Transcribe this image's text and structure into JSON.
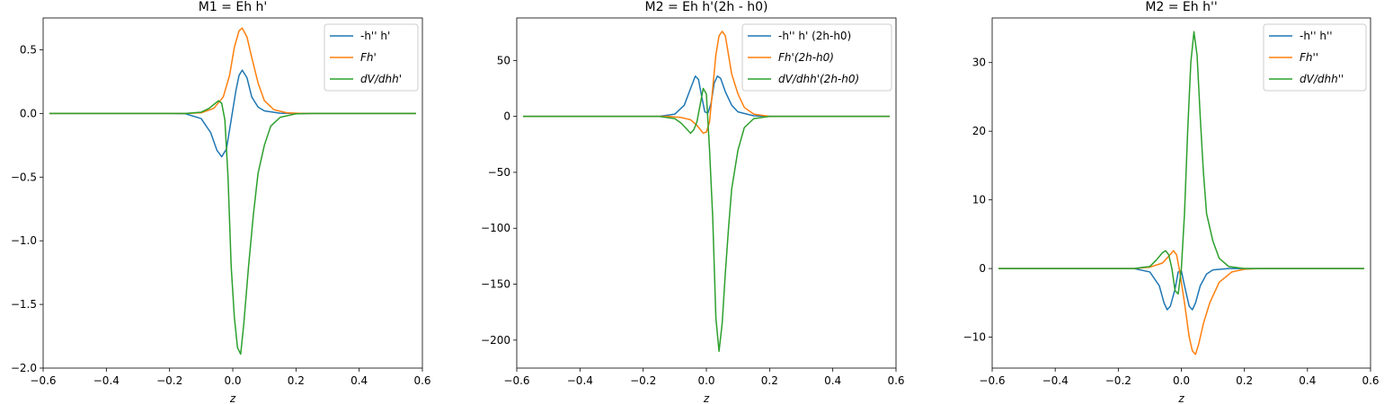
{
  "chart_data": [
    {
      "type": "line",
      "title": "M1 = Eh h'",
      "xlabel": "z",
      "xlim": [
        -0.6,
        0.6
      ],
      "ylim": [
        -2.0,
        0.75
      ],
      "xticks": [
        "−0.6",
        "−0.4",
        "−0.2",
        "0.0",
        "0.2",
        "0.4",
        "0.6"
      ],
      "yticks": [
        "−2.0",
        "−1.5",
        "−1.0",
        "−0.5",
        "0.0",
        "0.5"
      ],
      "ytick_values": [
        -2.0,
        -1.5,
        -1.0,
        -0.5,
        0.0,
        0.5
      ],
      "xtick_values": [
        -0.6,
        -0.4,
        -0.2,
        0.0,
        0.2,
        0.4,
        0.6
      ],
      "legend_position": "top-right",
      "series": [
        {
          "name": "-h'' h'",
          "color": "#1f77b4",
          "points": [
            [
              -0.58,
              0
            ],
            [
              -0.2,
              0
            ],
            [
              -0.15,
              -0.002
            ],
            [
              -0.1,
              -0.04
            ],
            [
              -0.07,
              -0.15
            ],
            [
              -0.05,
              -0.29
            ],
            [
              -0.035,
              -0.34
            ],
            [
              -0.02,
              -0.28
            ],
            [
              -0.005,
              -0.05
            ],
            [
              0.01,
              0.18
            ],
            [
              0.02,
              0.3
            ],
            [
              0.03,
              0.34
            ],
            [
              0.045,
              0.28
            ],
            [
              0.06,
              0.13
            ],
            [
              0.08,
              0.05
            ],
            [
              0.1,
              0.02
            ],
            [
              0.15,
              0.002
            ],
            [
              0.2,
              0
            ],
            [
              0.58,
              0
            ]
          ]
        },
        {
          "name": "Fh'",
          "color": "#ff7f0e",
          "points": [
            [
              -0.58,
              0
            ],
            [
              -0.15,
              0
            ],
            [
              -0.1,
              0.005
            ],
            [
              -0.06,
              0.04
            ],
            [
              -0.03,
              0.13
            ],
            [
              -0.01,
              0.3
            ],
            [
              0.005,
              0.52
            ],
            [
              0.02,
              0.65
            ],
            [
              0.03,
              0.67
            ],
            [
              0.045,
              0.6
            ],
            [
              0.06,
              0.44
            ],
            [
              0.08,
              0.24
            ],
            [
              0.1,
              0.1
            ],
            [
              0.13,
              0.03
            ],
            [
              0.17,
              0.005
            ],
            [
              0.22,
              0
            ],
            [
              0.58,
              0
            ]
          ]
        },
        {
          "name": "dV/dhh'",
          "color": "#2ca02c",
          "points": [
            [
              -0.58,
              0
            ],
            [
              -0.15,
              0
            ],
            [
              -0.1,
              0.01
            ],
            [
              -0.075,
              0.04
            ],
            [
              -0.055,
              0.08
            ],
            [
              -0.045,
              0.1
            ],
            [
              -0.035,
              0.08
            ],
            [
              -0.025,
              -0.05
            ],
            [
              -0.015,
              -0.5
            ],
            [
              -0.005,
              -1.2
            ],
            [
              0.005,
              -1.6
            ],
            [
              0.015,
              -1.84
            ],
            [
              0.025,
              -1.89
            ],
            [
              0.035,
              -1.65
            ],
            [
              0.05,
              -1.2
            ],
            [
              0.065,
              -0.8
            ],
            [
              0.08,
              -0.47
            ],
            [
              0.1,
              -0.25
            ],
            [
              0.12,
              -0.1
            ],
            [
              0.15,
              -0.03
            ],
            [
              0.2,
              -0.003
            ],
            [
              0.25,
              0
            ],
            [
              0.58,
              0
            ]
          ]
        }
      ]
    },
    {
      "type": "line",
      "title": "M2 = Eh h'(2h - h0)",
      "xlabel": "z",
      "xlim": [
        -0.6,
        0.6
      ],
      "ylim": [
        -225,
        88
      ],
      "xticks": [
        "−0.6",
        "−0.4",
        "−0.2",
        "0.0",
        "0.2",
        "0.4",
        "0.6"
      ],
      "yticks": [
        "−200",
        "−150",
        "−100",
        "−50",
        "0",
        "50"
      ],
      "ytick_values": [
        -200,
        -150,
        -100,
        -50,
        0,
        50
      ],
      "xtick_values": [
        -0.6,
        -0.4,
        -0.2,
        0.0,
        0.2,
        0.4,
        0.6
      ],
      "legend_position": "top-right",
      "series": [
        {
          "name": "-h'' h' (2h-h0)",
          "color": "#1f77b4",
          "points": [
            [
              -0.58,
              0
            ],
            [
              -0.15,
              0
            ],
            [
              -0.1,
              2
            ],
            [
              -0.07,
              10
            ],
            [
              -0.05,
              25
            ],
            [
              -0.035,
              36
            ],
            [
              -0.025,
              33
            ],
            [
              -0.015,
              18
            ],
            [
              -0.005,
              4
            ],
            [
              0.005,
              3
            ],
            [
              0.015,
              12
            ],
            [
              0.025,
              30
            ],
            [
              0.035,
              36
            ],
            [
              0.045,
              34
            ],
            [
              0.06,
              22
            ],
            [
              0.08,
              10
            ],
            [
              0.1,
              4
            ],
            [
              0.15,
              0.5
            ],
            [
              0.2,
              0
            ],
            [
              0.58,
              0
            ]
          ]
        },
        {
          "name": "Fh'(2h-h0)",
          "color": "#ff7f0e",
          "points": [
            [
              -0.58,
              0
            ],
            [
              -0.12,
              0
            ],
            [
              -0.08,
              -1
            ],
            [
              -0.05,
              -3
            ],
            [
              -0.03,
              -8
            ],
            [
              -0.01,
              -15
            ],
            [
              0.0,
              -14
            ],
            [
              0.01,
              -5
            ],
            [
              0.02,
              25
            ],
            [
              0.03,
              55
            ],
            [
              0.04,
              72
            ],
            [
              0.05,
              76
            ],
            [
              0.06,
              72
            ],
            [
              0.07,
              55
            ],
            [
              0.08,
              38
            ],
            [
              0.1,
              20
            ],
            [
              0.12,
              8
            ],
            [
              0.15,
              2
            ],
            [
              0.2,
              0
            ],
            [
              0.58,
              0
            ]
          ]
        },
        {
          "name": "dV/dhh'(2h-h0)",
          "color": "#2ca02c",
          "points": [
            [
              -0.58,
              0
            ],
            [
              -0.15,
              0
            ],
            [
              -0.1,
              -2
            ],
            [
              -0.08,
              -6
            ],
            [
              -0.06,
              -12
            ],
            [
              -0.05,
              -15
            ],
            [
              -0.04,
              -12
            ],
            [
              -0.03,
              -5
            ],
            [
              -0.02,
              10
            ],
            [
              -0.01,
              25
            ],
            [
              0.0,
              20
            ],
            [
              0.01,
              -30
            ],
            [
              0.02,
              -90
            ],
            [
              0.03,
              -180
            ],
            [
              0.04,
              -210
            ],
            [
              0.05,
              -185
            ],
            [
              0.06,
              -140
            ],
            [
              0.07,
              -100
            ],
            [
              0.08,
              -65
            ],
            [
              0.1,
              -30
            ],
            [
              0.12,
              -10
            ],
            [
              0.15,
              -2
            ],
            [
              0.2,
              0
            ],
            [
              0.58,
              0
            ]
          ]
        }
      ]
    },
    {
      "type": "line",
      "title": "M2 = Eh h''",
      "xlabel": "z",
      "xlim": [
        -0.6,
        0.6
      ],
      "ylim": [
        -14.5,
        36.5
      ],
      "xticks": [
        "−0.6",
        "−0.4",
        "−0.2",
        "0.0",
        "0.2",
        "0.4",
        "0.6"
      ],
      "yticks": [
        "−10",
        "0",
        "10",
        "20",
        "30"
      ],
      "ytick_values": [
        -10,
        0,
        10,
        20,
        30
      ],
      "xtick_values": [
        -0.6,
        -0.4,
        -0.2,
        0.0,
        0.2,
        0.4,
        0.6
      ],
      "legend_position": "top-right",
      "series": [
        {
          "name": "-h'' h''",
          "color": "#1f77b4",
          "points": [
            [
              -0.58,
              0
            ],
            [
              -0.15,
              0
            ],
            [
              -0.1,
              -0.5
            ],
            [
              -0.07,
              -2.5
            ],
            [
              -0.055,
              -5
            ],
            [
              -0.045,
              -6
            ],
            [
              -0.035,
              -5.5
            ],
            [
              -0.02,
              -3
            ],
            [
              -0.01,
              -0.5
            ],
            [
              0.0,
              -0.3
            ],
            [
              0.01,
              -2.5
            ],
            [
              0.025,
              -5.5
            ],
            [
              0.035,
              -6
            ],
            [
              0.045,
              -5
            ],
            [
              0.06,
              -2.5
            ],
            [
              0.08,
              -0.8
            ],
            [
              0.1,
              -0.2
            ],
            [
              0.15,
              0
            ],
            [
              0.58,
              0
            ]
          ]
        },
        {
          "name": "Fh''",
          "color": "#ff7f0e",
          "points": [
            [
              -0.58,
              0
            ],
            [
              -0.15,
              0
            ],
            [
              -0.1,
              0.2
            ],
            [
              -0.06,
              0.8
            ],
            [
              -0.04,
              1.8
            ],
            [
              -0.025,
              2.6
            ],
            [
              -0.015,
              2.0
            ],
            [
              -0.005,
              -0.5
            ],
            [
              0.01,
              -5
            ],
            [
              0.025,
              -10
            ],
            [
              0.035,
              -12
            ],
            [
              0.045,
              -12.5
            ],
            [
              0.055,
              -11
            ],
            [
              0.07,
              -8
            ],
            [
              0.09,
              -5
            ],
            [
              0.12,
              -2
            ],
            [
              0.16,
              -0.5
            ],
            [
              0.2,
              -0.1
            ],
            [
              0.25,
              0
            ],
            [
              0.58,
              0
            ]
          ]
        },
        {
          "name": "dV/dhh''",
          "color": "#2ca02c",
          "points": [
            [
              -0.58,
              0
            ],
            [
              -0.15,
              0
            ],
            [
              -0.1,
              0.3
            ],
            [
              -0.08,
              1.2
            ],
            [
              -0.06,
              2.3
            ],
            [
              -0.05,
              2.6
            ],
            [
              -0.04,
              2.0
            ],
            [
              -0.03,
              0
            ],
            [
              -0.02,
              -3.2
            ],
            [
              -0.01,
              -3.7
            ],
            [
              0.0,
              0
            ],
            [
              0.01,
              8
            ],
            [
              0.02,
              20
            ],
            [
              0.03,
              30
            ],
            [
              0.04,
              34.5
            ],
            [
              0.05,
              31
            ],
            [
              0.06,
              22
            ],
            [
              0.07,
              14
            ],
            [
              0.08,
              8
            ],
            [
              0.1,
              4
            ],
            [
              0.12,
              1.5
            ],
            [
              0.15,
              0.3
            ],
            [
              0.2,
              0
            ],
            [
              0.58,
              0
            ]
          ]
        }
      ]
    }
  ]
}
